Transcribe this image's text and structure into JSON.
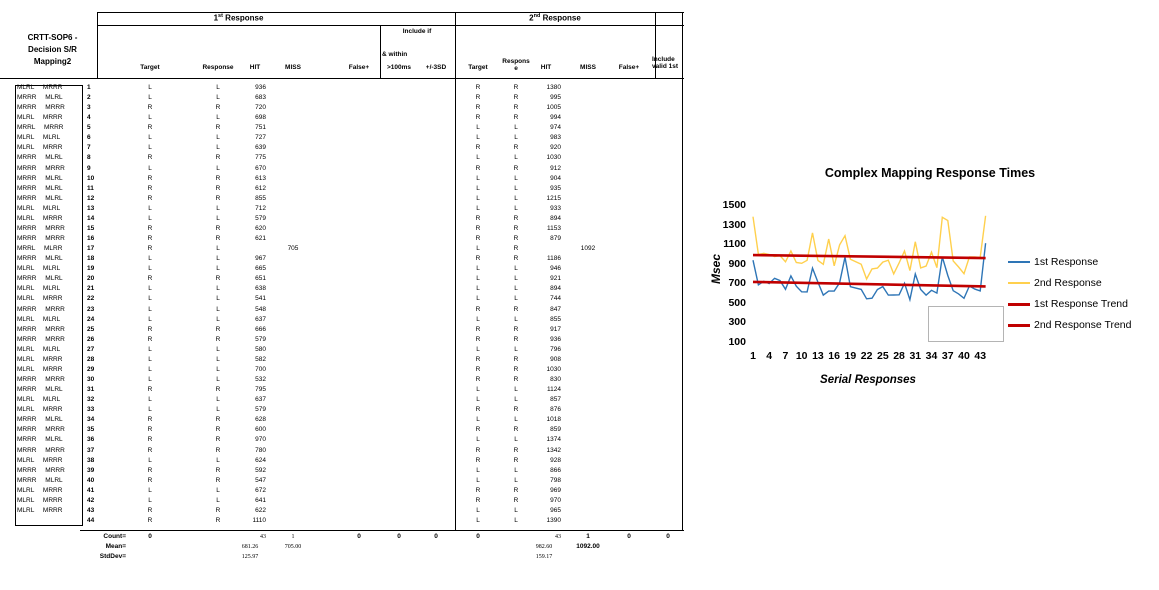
{
  "sheet": {
    "corner_title_lines": [
      "CRTT-SOP6 -",
      "Decision S/R",
      "Mapping2"
    ],
    "sections": {
      "first": {
        "num": "1",
        "sup": "st",
        "rest": " Response"
      },
      "second": {
        "num": "2",
        "sup": "nd",
        "rest": " Response"
      }
    },
    "include_if": "Include if",
    "and_within": "& within",
    "headers1": {
      "target": "Target",
      "response": "Response",
      "hit": "HIT",
      "miss": "MISS",
      "false_pos": "False+",
      "gt100": ">100ms",
      "sd3": "+/-3SD"
    },
    "headers2": {
      "target": "Target",
      "response": "Response",
      "hit": "HIT",
      "miss": "MISS",
      "false_pos": "False+",
      "include_valid": "Include valid 1st"
    },
    "rows": [
      {
        "n": "1",
        "map": "MLRL MRRR",
        "t1": "L",
        "r1": "L",
        "h1": "936",
        "m1": "",
        "t2": "R",
        "r2": "R",
        "h2": "1380",
        "m2": ""
      },
      {
        "n": "2",
        "map": "MRRR MLRL",
        "t1": "L",
        "r1": "L",
        "h1": "683",
        "m1": "",
        "t2": "R",
        "r2": "R",
        "h2": "995",
        "m2": ""
      },
      {
        "n": "3",
        "map": "MRRR MRRR",
        "t1": "R",
        "r1": "R",
        "h1": "720",
        "m1": "",
        "t2": "R",
        "r2": "R",
        "h2": "1005",
        "m2": ""
      },
      {
        "n": "4",
        "map": "MLRL MRRR",
        "t1": "L",
        "r1": "L",
        "h1": "698",
        "m1": "",
        "t2": "R",
        "r2": "R",
        "h2": "994",
        "m2": ""
      },
      {
        "n": "5",
        "map": "MRRL MRRR",
        "t1": "R",
        "r1": "R",
        "h1": "751",
        "m1": "",
        "t2": "L",
        "r2": "L",
        "h2": "974",
        "m2": ""
      },
      {
        "n": "6",
        "map": "MLRL MLRL",
        "t1": "L",
        "r1": "L",
        "h1": "727",
        "m1": "",
        "t2": "L",
        "r2": "L",
        "h2": "983",
        "m2": ""
      },
      {
        "n": "7",
        "map": "MLRL MRRR",
        "t1": "L",
        "r1": "L",
        "h1": "639",
        "m1": "",
        "t2": "R",
        "r2": "R",
        "h2": "920",
        "m2": ""
      },
      {
        "n": "8",
        "map": "MRRR MLRL",
        "t1": "R",
        "r1": "R",
        "h1": "775",
        "m1": "",
        "t2": "L",
        "r2": "L",
        "h2": "1030",
        "m2": ""
      },
      {
        "n": "9",
        "map": "MRRR MRRR",
        "t1": "L",
        "r1": "L",
        "h1": "670",
        "m1": "",
        "t2": "R",
        "r2": "R",
        "h2": "912",
        "m2": ""
      },
      {
        "n": "10",
        "map": "MRRR MLRL",
        "t1": "R",
        "r1": "R",
        "h1": "613",
        "m1": "",
        "t2": "L",
        "r2": "L",
        "h2": "904",
        "m2": ""
      },
      {
        "n": "11",
        "map": "MRRR MLRL",
        "t1": "R",
        "r1": "R",
        "h1": "612",
        "m1": "",
        "t2": "L",
        "r2": "L",
        "h2": "935",
        "m2": ""
      },
      {
        "n": "12",
        "map": "MRRR MLRL",
        "t1": "R",
        "r1": "R",
        "h1": "855",
        "m1": "",
        "t2": "L",
        "r2": "L",
        "h2": "1215",
        "m2": ""
      },
      {
        "n": "13",
        "map": "MLRL MLRL",
        "t1": "L",
        "r1": "L",
        "h1": "712",
        "m1": "",
        "t2": "L",
        "r2": "L",
        "h2": "933",
        "m2": ""
      },
      {
        "n": "14",
        "map": "MLRL MRRR",
        "t1": "L",
        "r1": "L",
        "h1": "579",
        "m1": "",
        "t2": "R",
        "r2": "R",
        "h2": "894",
        "m2": ""
      },
      {
        "n": "15",
        "map": "MRRR MRRR",
        "t1": "R",
        "r1": "R",
        "h1": "620",
        "m1": "",
        "t2": "R",
        "r2": "R",
        "h2": "1153",
        "m2": ""
      },
      {
        "n": "16",
        "map": "MRRR MRRR",
        "t1": "R",
        "r1": "R",
        "h1": "621",
        "m1": "",
        "t2": "R",
        "r2": "R",
        "h2": "879",
        "m2": ""
      },
      {
        "n": "17",
        "map": "MRRL MLRR",
        "t1": "R",
        "r1": "L",
        "h1": "",
        "m1": "705",
        "t2": "L",
        "r2": "R",
        "h2": "",
        "m2": "1092"
      },
      {
        "n": "18",
        "map": "MRRR MLRL",
        "t1": "L",
        "r1": "L",
        "h1": "967",
        "m1": "",
        "t2": "R",
        "r2": "R",
        "h2": "1186",
        "m2": ""
      },
      {
        "n": "19",
        "map": "MLRL MLRL",
        "t1": "L",
        "r1": "L",
        "h1": "665",
        "m1": "",
        "t2": "L",
        "r2": "L",
        "h2": "946",
        "m2": ""
      },
      {
        "n": "20",
        "map": "MRRR MLRL",
        "t1": "R",
        "r1": "R",
        "h1": "651",
        "m1": "",
        "t2": "L",
        "r2": "L",
        "h2": "921",
        "m2": ""
      },
      {
        "n": "21",
        "map": "MLRL MLRL",
        "t1": "L",
        "r1": "L",
        "h1": "638",
        "m1": "",
        "t2": "L",
        "r2": "L",
        "h2": "894",
        "m2": ""
      },
      {
        "n": "22",
        "map": "MLRL MRRR",
        "t1": "L",
        "r1": "L",
        "h1": "541",
        "m1": "",
        "t2": "L",
        "r2": "L",
        "h2": "744",
        "m2": ""
      },
      {
        "n": "23",
        "map": "MRRR MRRR",
        "t1": "L",
        "r1": "L",
        "h1": "548",
        "m1": "",
        "t2": "R",
        "r2": "R",
        "h2": "847",
        "m2": ""
      },
      {
        "n": "24",
        "map": "MLRL MLRL",
        "t1": "L",
        "r1": "L",
        "h1": "637",
        "m1": "",
        "t2": "L",
        "r2": "L",
        "h2": "855",
        "m2": ""
      },
      {
        "n": "25",
        "map": "MRRR MRRR",
        "t1": "R",
        "r1": "R",
        "h1": "666",
        "m1": "",
        "t2": "R",
        "r2": "R",
        "h2": "917",
        "m2": ""
      },
      {
        "n": "26",
        "map": "MRRR MRRR",
        "t1": "R",
        "r1": "R",
        "h1": "579",
        "m1": "",
        "t2": "R",
        "r2": "R",
        "h2": "936",
        "m2": ""
      },
      {
        "n": "27",
        "map": "MLRL MLRL",
        "t1": "L",
        "r1": "L",
        "h1": "580",
        "m1": "",
        "t2": "L",
        "r2": "L",
        "h2": "796",
        "m2": ""
      },
      {
        "n": "28",
        "map": "MLRL MRRR",
        "t1": "L",
        "r1": "L",
        "h1": "582",
        "m1": "",
        "t2": "R",
        "r2": "R",
        "h2": "908",
        "m2": ""
      },
      {
        "n": "29",
        "map": "MLRL MRRR",
        "t1": "L",
        "r1": "L",
        "h1": "700",
        "m1": "",
        "t2": "R",
        "r2": "R",
        "h2": "1030",
        "m2": ""
      },
      {
        "n": "30",
        "map": "MRRR MRRR",
        "t1": "L",
        "r1": "L",
        "h1": "532",
        "m1": "",
        "t2": "R",
        "r2": "R",
        "h2": "830",
        "m2": ""
      },
      {
        "n": "31",
        "map": "MRRR MLRL",
        "t1": "R",
        "r1": "R",
        "h1": "795",
        "m1": "",
        "t2": "L",
        "r2": "L",
        "h2": "1124",
        "m2": ""
      },
      {
        "n": "32",
        "map": "MLRL MLRL",
        "t1": "L",
        "r1": "L",
        "h1": "637",
        "m1": "",
        "t2": "L",
        "r2": "L",
        "h2": "857",
        "m2": ""
      },
      {
        "n": "33",
        "map": "MLRL MRRR",
        "t1": "L",
        "r1": "L",
        "h1": "579",
        "m1": "",
        "t2": "R",
        "r2": "R",
        "h2": "876",
        "m2": ""
      },
      {
        "n": "34",
        "map": "MRRR MLRL",
        "t1": "R",
        "r1": "R",
        "h1": "628",
        "m1": "",
        "t2": "L",
        "r2": "L",
        "h2": "1018",
        "m2": ""
      },
      {
        "n": "35",
        "map": "MRRR MRRR",
        "t1": "R",
        "r1": "R",
        "h1": "600",
        "m1": "",
        "t2": "R",
        "r2": "R",
        "h2": "859",
        "m2": ""
      },
      {
        "n": "36",
        "map": "MRRR MLRL",
        "t1": "R",
        "r1": "R",
        "h1": "970",
        "m1": "",
        "t2": "L",
        "r2": "L",
        "h2": "1374",
        "m2": ""
      },
      {
        "n": "37",
        "map": "MRRR MRRR",
        "t1": "R",
        "r1": "R",
        "h1": "780",
        "m1": "",
        "t2": "R",
        "r2": "R",
        "h2": "1342",
        "m2": ""
      },
      {
        "n": "38",
        "map": "MLRL MRRR",
        "t1": "L",
        "r1": "L",
        "h1": "624",
        "m1": "",
        "t2": "R",
        "r2": "R",
        "h2": "928",
        "m2": ""
      },
      {
        "n": "39",
        "map": "MRRR MRRR",
        "t1": "R",
        "r1": "R",
        "h1": "592",
        "m1": "",
        "t2": "L",
        "r2": "L",
        "h2": "866",
        "m2": ""
      },
      {
        "n": "40",
        "map": "MRRR MLRL",
        "t1": "R",
        "r1": "R",
        "h1": "547",
        "m1": "",
        "t2": "L",
        "r2": "L",
        "h2": "798",
        "m2": ""
      },
      {
        "n": "41",
        "map": "MLRL MRRR",
        "t1": "L",
        "r1": "L",
        "h1": "672",
        "m1": "",
        "t2": "R",
        "r2": "R",
        "h2": "969",
        "m2": ""
      },
      {
        "n": "42",
        "map": "MLRL MRRR",
        "t1": "L",
        "r1": "L",
        "h1": "641",
        "m1": "",
        "t2": "R",
        "r2": "R",
        "h2": "970",
        "m2": ""
      },
      {
        "n": "43",
        "map": "MLRL MRRR",
        "t1": "R",
        "r1": "R",
        "h1": "622",
        "m1": "",
        "t2": "L",
        "r2": "L",
        "h2": "965",
        "m2": ""
      },
      {
        "n": "44",
        "map": "",
        "t1": "R",
        "r1": "R",
        "h1": "1110",
        "m1": "",
        "t2": "L",
        "r2": "L",
        "h2": "1390",
        "m2": ""
      }
    ],
    "summary": {
      "labels": {
        "count": "Count=",
        "mean": "Mean=",
        "stddev": "StdDev="
      },
      "count": {
        "t1": "0",
        "h1": "43",
        "m1": "1",
        "false1": "0",
        "gt100": "0",
        "sd3": "0",
        "t2": "0",
        "h2": "43",
        "m2": "1",
        "false2": "0",
        "inc2": "0"
      },
      "mean": {
        "h1": "681.26",
        "m1": "705.00",
        "h2": "982.60",
        "m2": "1092.00"
      },
      "stddev": {
        "h1": "125.97",
        "h2": "159.17"
      }
    }
  },
  "chart_data": {
    "type": "line",
    "title": "Complex Mapping Response Times",
    "xlabel": "Serial Responses",
    "ylabel": "Msec",
    "ylim": [
      100,
      1500
    ],
    "y_ticks": [
      100,
      300,
      500,
      700,
      900,
      1100,
      1300,
      1500
    ],
    "x_ticks": [
      1,
      4,
      7,
      10,
      13,
      16,
      19,
      22,
      25,
      28,
      31,
      34,
      37,
      40,
      43
    ],
    "x_range": [
      1,
      44
    ],
    "grid": false,
    "legend_position": "right",
    "series": [
      {
        "name": "1st Response",
        "color": "#2E75B6",
        "width": 1.4,
        "values": [
          936,
          683,
          720,
          698,
          751,
          727,
          639,
          775,
          670,
          613,
          612,
          855,
          712,
          579,
          620,
          621,
          705,
          967,
          665,
          651,
          638,
          541,
          548,
          637,
          666,
          579,
          580,
          582,
          700,
          532,
          795,
          637,
          579,
          628,
          600,
          970,
          780,
          624,
          592,
          547,
          672,
          641,
          622,
          1110
        ]
      },
      {
        "name": "2nd Response",
        "color": "#FFD04D",
        "width": 1.4,
        "values": [
          1380,
          995,
          1005,
          994,
          974,
          983,
          920,
          1030,
          912,
          904,
          935,
          1215,
          933,
          894,
          1153,
          879,
          1092,
          1186,
          946,
          921,
          894,
          744,
          847,
          855,
          917,
          936,
          796,
          908,
          1030,
          830,
          1124,
          857,
          876,
          1018,
          859,
          1374,
          1342,
          928,
          866,
          798,
          969,
          970,
          965,
          1390
        ]
      },
      {
        "name": "1st Response Trend",
        "color": "#C00000",
        "width": 2.6,
        "trend": [
          714,
          668
        ]
      },
      {
        "name": "2nd Response Trend",
        "color": "#C00000",
        "width": 2.6,
        "trend": [
          988,
          958
        ]
      }
    ]
  }
}
